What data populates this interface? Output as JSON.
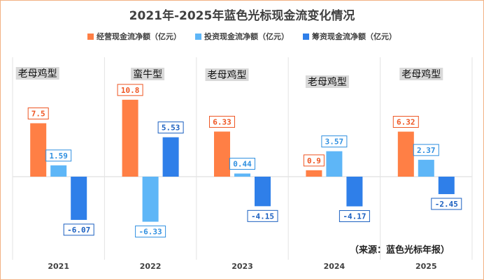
{
  "chart_data": {
    "type": "bar",
    "title": "2021年-2025年蓝色光标现金流变化情况",
    "categories": [
      "2021",
      "2022",
      "2023",
      "2024",
      "2025"
    ],
    "series": [
      {
        "name": "经营现金流净额（亿元）",
        "values": [
          7.5,
          10.8,
          6.33,
          0.9,
          6.32
        ],
        "labels": [
          "7.5",
          "10.8",
          "6.33",
          "0.9",
          "6.32"
        ],
        "color": "#ff7f45",
        "label_color": "#ee5522"
      },
      {
        "name": "投资现金流净额（亿元）",
        "values": [
          1.59,
          -6.33,
          0.44,
          3.57,
          2.37
        ],
        "labels": [
          "1.59",
          "-6.33",
          "0.44",
          "3.57",
          "2.37"
        ],
        "color": "#5eb6f7",
        "label_color": "#2f8fe0"
      },
      {
        "name": "筹资现金流净额（亿元）",
        "values": [
          -6.07,
          5.53,
          -4.15,
          -4.17,
          -2.45
        ],
        "labels": [
          "-6.07",
          "5.53",
          "-4.15",
          "-4.17",
          "-2.45"
        ],
        "color": "#2f7fe9",
        "label_color": "#1a5fc0"
      }
    ],
    "annotations": [
      "老母鸡型",
      "蛮牛型",
      "老母鸡型",
      "老母鸡型",
      "老母鸡型"
    ],
    "ylim": [
      -8.5,
      12
    ],
    "grid": false,
    "legend": "top-center",
    "source": "（来源：蓝色光标年报）"
  }
}
